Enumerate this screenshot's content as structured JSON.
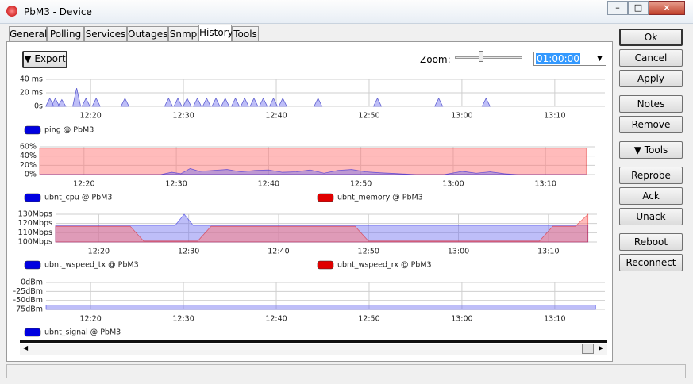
{
  "window": {
    "title": "PbM3 - Device"
  },
  "tabs": [
    "General",
    "Polling",
    "Services",
    "Outages",
    "Snmp",
    "History",
    "Tools"
  ],
  "toolbar": {
    "export": "Export",
    "zoom_label": "Zoom:",
    "zoom_value": "01:00:00"
  },
  "buttons": [
    "Ok",
    "Cancel",
    "Apply",
    "Notes",
    "Remove",
    "Tools",
    "Reprobe",
    "Ack",
    "Unack",
    "Reboot",
    "Reconnect"
  ],
  "chart_data": [
    {
      "type": "spike",
      "xlim": [
        735.2,
        795.4
      ],
      "ylim": [
        0,
        40
      ],
      "yticks": [
        {
          "value": 0,
          "label": "0s"
        },
        {
          "value": 20,
          "label": "20 ms"
        },
        {
          "value": 40,
          "label": "40 ms"
        }
      ],
      "xticks": [
        {
          "value": 740,
          "label": "12:20"
        },
        {
          "value": 750,
          "label": "12:30"
        },
        {
          "value": 760,
          "label": "12:40"
        },
        {
          "value": 770,
          "label": "12:50"
        },
        {
          "value": 780,
          "label": "13:00"
        },
        {
          "value": 790,
          "label": "13:10"
        }
      ],
      "series": [
        {
          "name": "ping @ PbM3",
          "color": "#0000e0",
          "x": [
            735.6,
            736.2,
            736.9,
            738.5,
            739.5,
            740.6,
            743.7,
            748.4,
            749.4,
            750.4,
            751.5,
            752.5,
            753.5,
            754.5,
            755.6,
            756.6,
            757.6,
            758.6,
            759.7,
            760.7,
            764.5,
            770.9,
            777.5,
            782.6
          ],
          "values": [
            12,
            12,
            10,
            27,
            12,
            12,
            12,
            12,
            12,
            12,
            12,
            12,
            12,
            12,
            12,
            12,
            12,
            12,
            12,
            12,
            12,
            12,
            12,
            12
          ]
        }
      ]
    },
    {
      "type": "area",
      "xlim": [
        735.2,
        795.4
      ],
      "ylim": [
        0,
        60
      ],
      "yticks": [
        {
          "value": 0,
          "label": "0%"
        },
        {
          "value": 20,
          "label": "20%"
        },
        {
          "value": 40,
          "label": "40%"
        },
        {
          "value": 60,
          "label": "60%"
        }
      ],
      "xticks": [
        {
          "value": 740,
          "label": "12:20"
        },
        {
          "value": 750,
          "label": "12:30"
        },
        {
          "value": 760,
          "label": "12:40"
        },
        {
          "value": 770,
          "label": "12:50"
        },
        {
          "value": 780,
          "label": "13:00"
        },
        {
          "value": 790,
          "label": "13:10"
        }
      ],
      "series": [
        {
          "name": "ubnt_memory @ PbM3",
          "color": "#e00000",
          "x": [
            735.2,
            794.4
          ],
          "values": [
            57,
            57
          ]
        },
        {
          "name": "ubnt_cpu @ PbM3",
          "color": "#0000e0",
          "x": [
            735.2,
            748.3,
            749.5,
            750.5,
            751.5,
            752.5,
            754,
            755.5,
            757,
            758.5,
            760,
            761.5,
            763,
            764.5,
            766,
            767.5,
            769,
            770.5,
            772,
            774,
            776,
            779,
            781,
            782.5,
            784,
            785.5,
            787,
            794.4
          ],
          "values": [
            0,
            0,
            5,
            2,
            13,
            7,
            9,
            11,
            6,
            9,
            10,
            5,
            6,
            10,
            3,
            9,
            11,
            6,
            4,
            2,
            0,
            0,
            7,
            3,
            6,
            2,
            0,
            0
          ]
        }
      ]
    },
    {
      "type": "area",
      "xlim": [
        735.2,
        795.4
      ],
      "ylim": [
        100,
        130
      ],
      "yticks": [
        {
          "value": 100,
          "label": "100Mbps"
        },
        {
          "value": 110,
          "label": "110Mbps"
        },
        {
          "value": 120,
          "label": "120Mbps"
        },
        {
          "value": 130,
          "label": "130Mbps"
        }
      ],
      "xticks": [
        {
          "value": 740,
          "label": "12:20"
        },
        {
          "value": 750,
          "label": "12:30"
        },
        {
          "value": 760,
          "label": "12:40"
        },
        {
          "value": 770,
          "label": "12:50"
        },
        {
          "value": 780,
          "label": "13:00"
        },
        {
          "value": 790,
          "label": "13:10"
        }
      ],
      "series": [
        {
          "name": "ubnt_wspeed_tx @ PbM3",
          "color": "#0000e0",
          "x": [
            735.2,
            748.5,
            749.5,
            750.5,
            794.4
          ],
          "values": [
            118,
            118,
            130,
            118,
            118
          ]
        },
        {
          "name": "ubnt_wspeed_rx @ PbM3",
          "color": "#e00000",
          "x": [
            735.2,
            743.5,
            745,
            751,
            752.5,
            768.5,
            770,
            789,
            790.5,
            793,
            794.4
          ],
          "values": [
            117,
            117,
            101,
            101,
            117,
            117,
            101,
            101,
            117,
            117,
            130
          ]
        }
      ]
    },
    {
      "type": "area",
      "xlim": [
        735.2,
        795.4
      ],
      "ylim": [
        -75,
        0
      ],
      "yticks": [
        {
          "value": 0,
          "label": "0dBm"
        },
        {
          "value": -25,
          "label": "-25dBm"
        },
        {
          "value": -50,
          "label": "-50dBm"
        },
        {
          "value": -75,
          "label": "-75dBm"
        }
      ],
      "xticks": [
        {
          "value": 740,
          "label": "12:20"
        },
        {
          "value": 750,
          "label": "12:30"
        },
        {
          "value": 760,
          "label": "12:40"
        },
        {
          "value": 770,
          "label": "12:50"
        },
        {
          "value": 780,
          "label": "13:00"
        },
        {
          "value": 790,
          "label": "13:10"
        }
      ],
      "series": [
        {
          "name": "ubnt_signal @ PbM3",
          "color": "#0000e0",
          "x": [
            735.2,
            794.4
          ],
          "values": [
            -63,
            -63
          ]
        }
      ]
    }
  ]
}
